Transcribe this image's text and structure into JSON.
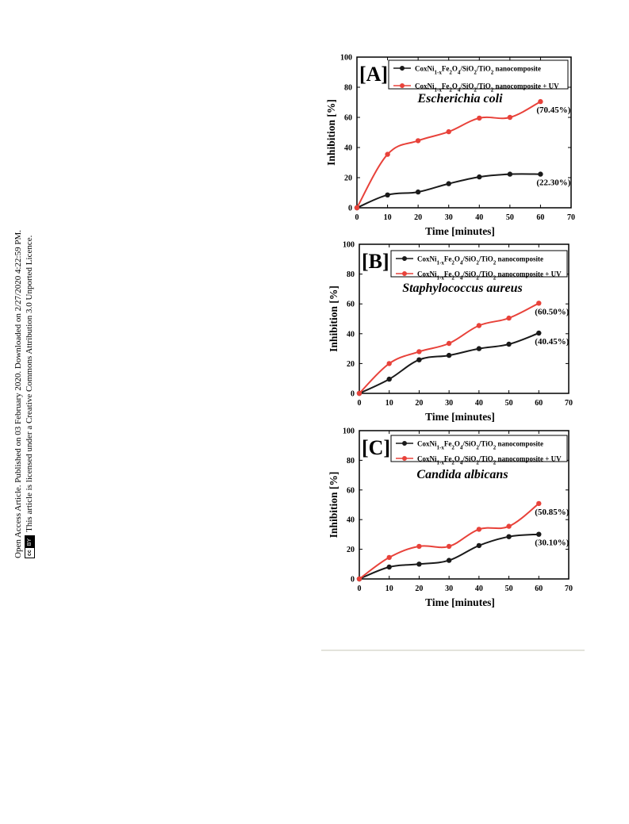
{
  "sidebar": {
    "line1": "Open Access Article. Published on 03 February 2020. Downloaded on 2/27/2020 4:22:59 PM.",
    "line2": "This article is licensed under a Creative Commons Attribution 3.0 Unported Licence.",
    "badge_cc": "cc",
    "badge_by": "BY"
  },
  "colors": {
    "series_dark": "#1a1a1a",
    "series_uv": "#e8423a",
    "axis": "#000000"
  },
  "chart_data": [
    {
      "type": "line",
      "panel_label": "[A]",
      "title": "Escherichia coli",
      "xlabel": "Time [minutes]",
      "ylabel": "Inhibition [%]",
      "xlim": [
        0,
        70
      ],
      "ylim": [
        0,
        100
      ],
      "xticks": [
        0,
        10,
        20,
        30,
        40,
        50,
        60,
        70
      ],
      "yticks": [
        0,
        20,
        40,
        60,
        80,
        100
      ],
      "legend_position": "top-right",
      "x": [
        0,
        10,
        20,
        30,
        40,
        50,
        60
      ],
      "series": [
        {
          "name": "Co$Ni1-xFe2O4/SiO2/TiO2 nanocomposite",
          "color": "#1a1a1a",
          "values": [
            0,
            8.5,
            10.5,
            16,
            20.5,
            22.3,
            22.3
          ],
          "end_label": "(22.30%)"
        },
        {
          "name": "Co$Ni1-xFe2O4/SiO2/TiO2 nanocomposite + UV",
          "color": "#e8423a",
          "values": [
            0,
            35.5,
            44.5,
            50.5,
            59.5,
            60,
            70.45
          ],
          "end_label": "(70.45%)"
        }
      ]
    },
    {
      "type": "line",
      "panel_label": "[B]",
      "title": "Staphylococcus aureus",
      "xlabel": "Time [minutes]",
      "ylabel": "Inhibition [%]",
      "xlim": [
        0,
        70
      ],
      "ylim": [
        0,
        100
      ],
      "xticks": [
        0,
        10,
        20,
        30,
        40,
        50,
        60,
        70
      ],
      "yticks": [
        0,
        20,
        40,
        60,
        80,
        100
      ],
      "legend_position": "top-right",
      "x": [
        0,
        10,
        20,
        30,
        40,
        50,
        60
      ],
      "series": [
        {
          "name": "Co$Ni1-xFe2O4/SiO2/TiO2 nanocomposite",
          "color": "#1a1a1a",
          "values": [
            0,
            9.5,
            22.5,
            25.5,
            30,
            33,
            40.45
          ],
          "end_label": "(40.45%)"
        },
        {
          "name": "Co$Ni1-xFe2O4/SiO2/TiO2 nanocomposite + UV",
          "color": "#e8423a",
          "values": [
            0,
            20,
            28,
            33.5,
            45.5,
            50.5,
            60.5
          ],
          "end_label": "(60.50%)"
        }
      ]
    },
    {
      "type": "line",
      "panel_label": "[C]",
      "title": "Candida albicans",
      "xlabel": "Time [minutes]",
      "ylabel": "Inhibition [%]",
      "xlim": [
        0,
        70
      ],
      "ylim": [
        0,
        100
      ],
      "xticks": [
        0,
        10,
        20,
        30,
        40,
        50,
        60,
        70
      ],
      "yticks": [
        0,
        20,
        40,
        60,
        80,
        100
      ],
      "legend_position": "top-right",
      "x": [
        0,
        10,
        20,
        30,
        40,
        50,
        60
      ],
      "series": [
        {
          "name": "Co$Ni1-xFe2O4/SiO2/TiO2 nanocomposite",
          "color": "#1a1a1a",
          "values": [
            0,
            8,
            10,
            12.5,
            22.5,
            28.5,
            30.1
          ],
          "end_label": "(30.10%)"
        },
        {
          "name": "Co$Ni1-xFe2O4/SiO2/TiO2 nanocomposite + UV",
          "color": "#e8423a",
          "values": [
            0,
            14.5,
            22,
            22,
            33.5,
            35.5,
            50.85
          ],
          "end_label": "(50.85%)"
        }
      ]
    }
  ]
}
